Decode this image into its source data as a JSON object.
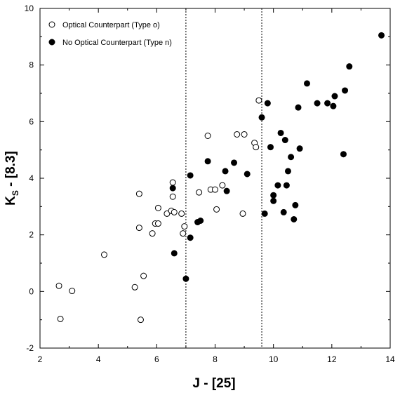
{
  "chart_data": {
    "type": "scatter",
    "title": "",
    "xlabel": "J - [25]",
    "ylabel_main": "K",
    "ylabel_sub": "S",
    "ylabel_rest": " - [8.3]",
    "xlim": [
      2,
      14
    ],
    "ylim": [
      -2,
      10
    ],
    "xticks": [
      2,
      4,
      6,
      8,
      10,
      12,
      14
    ],
    "yticks": [
      -2,
      0,
      2,
      4,
      6,
      8,
      10
    ],
    "grid": false,
    "legend_position": "top-left",
    "vlines": [
      7.0,
      9.6
    ],
    "series": [
      {
        "name": "Optical Counterpart (Type o)",
        "marker": "open-circle",
        "points": [
          [
            2.65,
            0.2
          ],
          [
            3.1,
            0.02
          ],
          [
            2.7,
            -0.97
          ],
          [
            4.2,
            1.3
          ],
          [
            5.25,
            0.15
          ],
          [
            5.45,
            -1.0
          ],
          [
            5.55,
            0.55
          ],
          [
            5.4,
            3.45
          ],
          [
            5.4,
            2.25
          ],
          [
            5.85,
            2.05
          ],
          [
            5.95,
            2.4
          ],
          [
            6.05,
            2.4
          ],
          [
            6.05,
            2.95
          ],
          [
            6.35,
            2.75
          ],
          [
            6.5,
            2.85
          ],
          [
            6.55,
            3.85
          ],
          [
            6.55,
            3.35
          ],
          [
            6.6,
            2.8
          ],
          [
            6.85,
            2.75
          ],
          [
            6.9,
            2.05
          ],
          [
            6.95,
            2.3
          ],
          [
            7.45,
            3.5
          ],
          [
            7.75,
            5.5
          ],
          [
            7.85,
            3.6
          ],
          [
            8.0,
            3.6
          ],
          [
            8.05,
            2.9
          ],
          [
            8.25,
            3.75
          ],
          [
            8.75,
            5.55
          ],
          [
            8.95,
            2.75
          ],
          [
            9.0,
            5.55
          ],
          [
            9.35,
            5.25
          ],
          [
            9.4,
            5.1
          ],
          [
            9.5,
            6.75
          ]
        ]
      },
      {
        "name": "No Optical Counterpart (Type n)",
        "marker": "filled-circle",
        "points": [
          [
            6.55,
            3.65
          ],
          [
            6.6,
            1.35
          ],
          [
            7.0,
            0.45
          ],
          [
            7.15,
            1.9
          ],
          [
            7.15,
            4.1
          ],
          [
            7.4,
            2.45
          ],
          [
            7.5,
            2.5
          ],
          [
            7.75,
            4.6
          ],
          [
            8.35,
            4.25
          ],
          [
            8.4,
            3.55
          ],
          [
            8.65,
            4.55
          ],
          [
            9.1,
            4.15
          ],
          [
            9.6,
            6.15
          ],
          [
            9.7,
            2.75
          ],
          [
            9.8,
            6.65
          ],
          [
            9.9,
            5.1
          ],
          [
            10.0,
            3.4
          ],
          [
            10.0,
            3.2
          ],
          [
            10.15,
            3.75
          ],
          [
            10.25,
            5.6
          ],
          [
            10.35,
            2.8
          ],
          [
            10.4,
            5.35
          ],
          [
            10.45,
            3.75
          ],
          [
            10.5,
            4.25
          ],
          [
            10.6,
            4.75
          ],
          [
            10.7,
            2.55
          ],
          [
            10.75,
            3.05
          ],
          [
            10.85,
            6.5
          ],
          [
            10.9,
            5.05
          ],
          [
            11.15,
            7.35
          ],
          [
            11.5,
            6.65
          ],
          [
            11.85,
            6.65
          ],
          [
            12.05,
            6.55
          ],
          [
            12.1,
            6.9
          ],
          [
            12.4,
            4.85
          ],
          [
            12.45,
            7.1
          ],
          [
            12.6,
            7.95
          ],
          [
            13.7,
            9.05
          ]
        ]
      }
    ]
  }
}
